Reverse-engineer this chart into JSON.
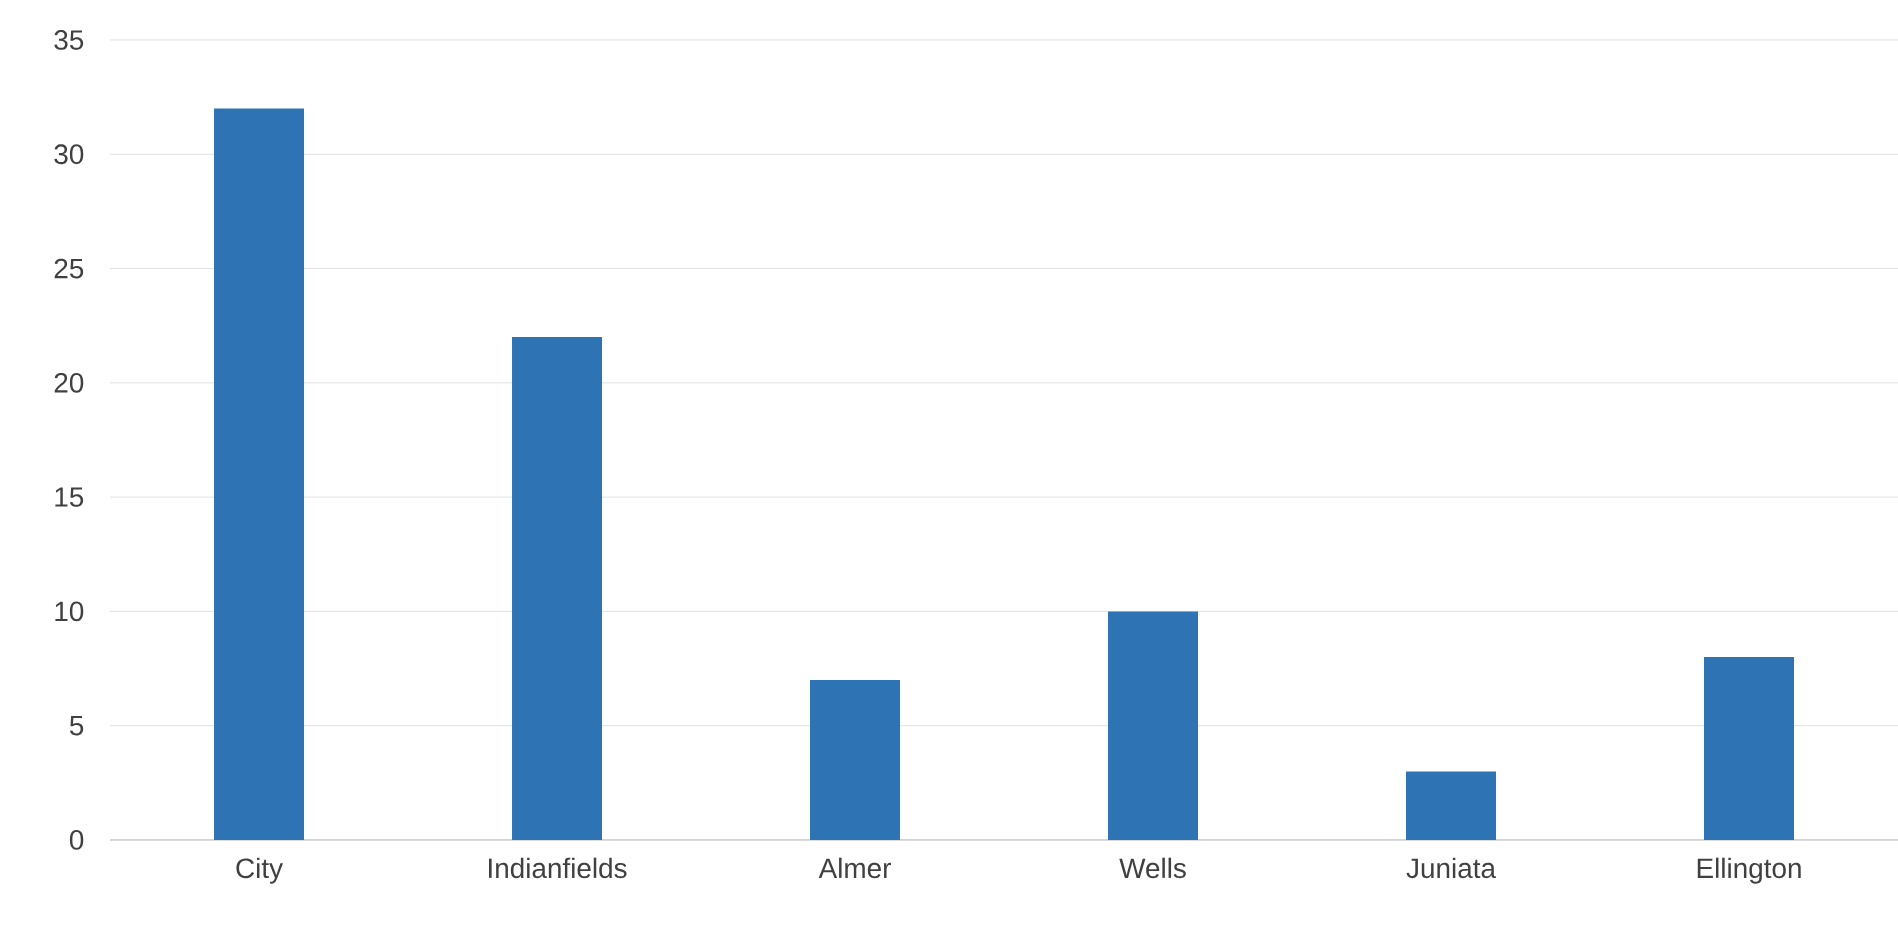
{
  "chart_data": {
    "type": "bar",
    "categories": [
      "City",
      "Indianfields",
      "Almer",
      "Wells",
      "Juniata",
      "Ellington"
    ],
    "values": [
      32,
      22,
      7,
      10,
      3,
      8
    ],
    "color": "#2e74b5",
    "ylim": [
      0,
      35
    ],
    "yticks": [
      0,
      5,
      10,
      15,
      20,
      25,
      30,
      35
    ],
    "grid": "y"
  }
}
